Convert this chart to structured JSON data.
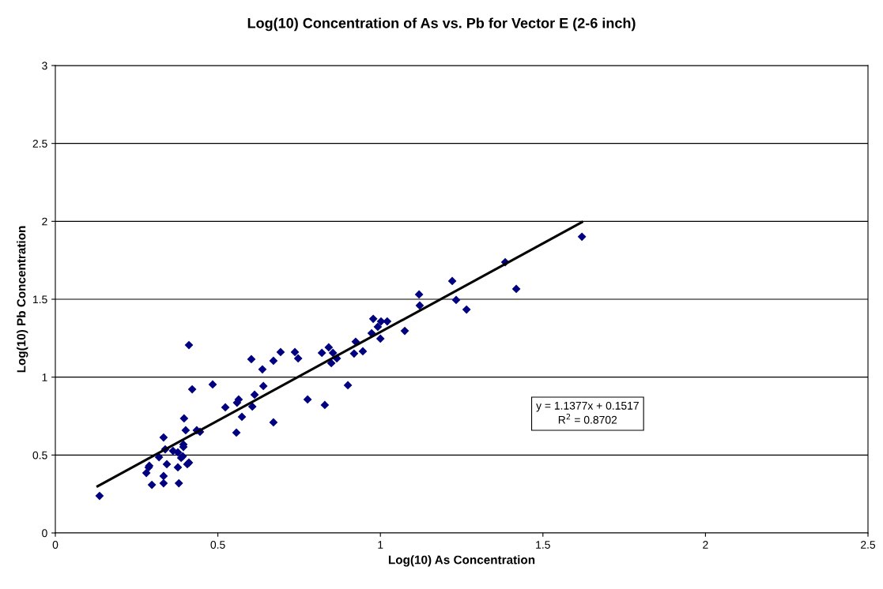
{
  "chart_data": {
    "type": "scatter",
    "title": "Log(10) Concentration of As vs. Pb for Vector E (2-6 inch)",
    "xlabel": "Log(10) As Concentration",
    "ylabel": "Log(10) Pb Concentration",
    "xlim": [
      0,
      2.5
    ],
    "xticks": [
      0,
      0.5,
      1,
      1.5,
      2,
      2.5
    ],
    "ylim": [
      0,
      3
    ],
    "yticks": [
      0,
      0.5,
      1,
      1.5,
      2,
      2.5,
      3
    ],
    "grid": "y",
    "marker": "diamond",
    "annotations": [
      "y = 1.1377x + 0.1517\nR$^{2}$ = 0.8702"
    ],
    "series": [
      {
        "color": "#000080",
        "x": [
          0.136,
          0.297,
          0.333,
          0.38,
          0.333,
          0.28,
          0.287,
          0.289,
          0.343,
          0.377,
          0.406,
          0.411,
          0.319,
          0.392,
          0.387,
          0.377,
          0.362,
          0.338,
          0.394,
          0.394,
          0.333,
          0.401,
          0.435,
          0.445,
          0.396,
          0.557,
          0.574,
          0.523,
          0.559,
          0.564,
          0.606,
          0.613,
          0.64,
          0.671,
          0.421,
          0.484,
          0.411,
          0.603,
          0.637,
          0.671,
          0.693,
          0.737,
          0.747,
          0.776,
          0.829,
          0.82,
          0.841,
          0.854,
          0.849,
          0.866,
          0.9,
          0.919,
          0.924,
          0.946,
          0.973,
          0.978,
          0.992,
          1.002,
          1.021,
          1.0,
          1.075,
          1.119,
          1.121,
          1.221,
          1.233,
          1.265,
          1.384,
          1.418,
          1.62
        ],
        "values": [
          0.238,
          0.309,
          0.319,
          0.319,
          0.365,
          0.385,
          0.421,
          0.431,
          0.441,
          0.421,
          0.441,
          0.451,
          0.486,
          0.492,
          0.482,
          0.517,
          0.527,
          0.537,
          0.552,
          0.568,
          0.613,
          0.659,
          0.659,
          0.649,
          0.735,
          0.644,
          0.745,
          0.806,
          0.836,
          0.857,
          0.811,
          0.887,
          0.943,
          0.71,
          0.922,
          0.953,
          1.206,
          1.115,
          1.05,
          1.105,
          1.161,
          1.161,
          1.12,
          0.857,
          0.821,
          1.156,
          1.191,
          1.156,
          1.09,
          1.12,
          0.948,
          1.151,
          1.227,
          1.166,
          1.282,
          1.374,
          1.323,
          1.358,
          1.358,
          1.247,
          1.297,
          1.531,
          1.46,
          1.617,
          1.495,
          1.434,
          1.738,
          1.566,
          1.901
        ]
      },
      {
        "type": "line",
        "color": "#000000",
        "marker": "none",
        "x": [
          0.13,
          1.62
        ],
        "values": [
          0.2996,
          1.9948
        ]
      }
    ]
  }
}
